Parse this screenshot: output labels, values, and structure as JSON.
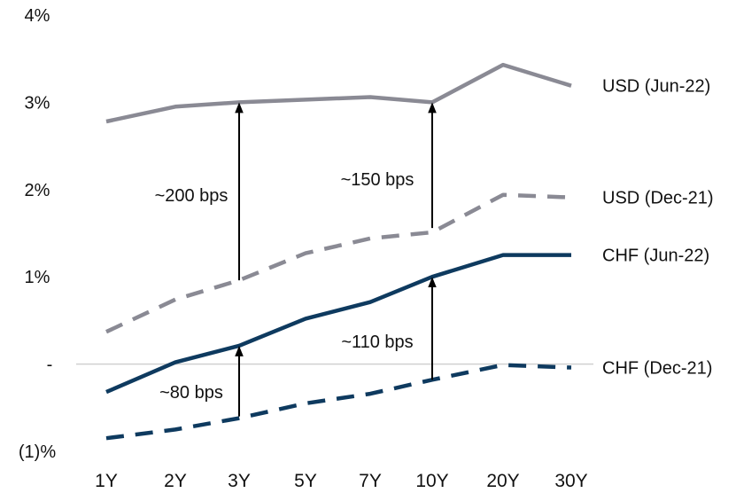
{
  "chart_data": {
    "type": "line",
    "title": "",
    "xlabel": "",
    "ylabel": "",
    "categories": [
      "1Y",
      "2Y",
      "3Y",
      "5Y",
      "7Y",
      "10Y",
      "20Y",
      "30Y"
    ],
    "ylim": [
      -1,
      4
    ],
    "y_ticks": [
      {
        "value": 4,
        "label": "4%"
      },
      {
        "value": 3,
        "label": "3%"
      },
      {
        "value": 2,
        "label": "2%"
      },
      {
        "value": 1,
        "label": "1%"
      },
      {
        "value": 0,
        "label": "-"
      },
      {
        "value": -1,
        "label": "(1)%"
      }
    ],
    "grid": false,
    "zero_line": true,
    "legend": "labels at right end of each line",
    "series": [
      {
        "name": "USD (Jun-22)",
        "color": "#8a8a94",
        "dash": "solid",
        "values": [
          2.78,
          2.95,
          3.0,
          3.03,
          3.06,
          3.0,
          3.43,
          3.19
        ]
      },
      {
        "name": "USD (Dec-21)",
        "color": "#8a8a94",
        "dash": "dashed",
        "values": [
          0.37,
          0.74,
          0.96,
          1.27,
          1.44,
          1.51,
          1.94,
          1.91
        ]
      },
      {
        "name": "CHF (Jun-22)",
        "color": "#0e3a5f",
        "dash": "solid",
        "values": [
          -0.32,
          0.02,
          0.21,
          0.52,
          0.71,
          1.0,
          1.25,
          1.25
        ]
      },
      {
        "name": "CHF (Dec-21)",
        "color": "#0e3a5f",
        "dash": "dashed",
        "values": [
          -0.85,
          -0.75,
          -0.62,
          -0.45,
          -0.34,
          -0.18,
          -0.01,
          -0.04
        ]
      }
    ],
    "annotations": [
      {
        "text": "~200 bps",
        "category": "3Y",
        "from": 0.96,
        "to": 3.0
      },
      {
        "text": "~150 bps",
        "category": "10Y",
        "from": 1.56,
        "to": 3.0
      },
      {
        "text": "~80 bps",
        "category": "3Y",
        "from": -0.6,
        "to": 0.21
      },
      {
        "text": "~110 bps",
        "category": "10Y",
        "from": -0.18,
        "to": 1.0
      }
    ]
  }
}
